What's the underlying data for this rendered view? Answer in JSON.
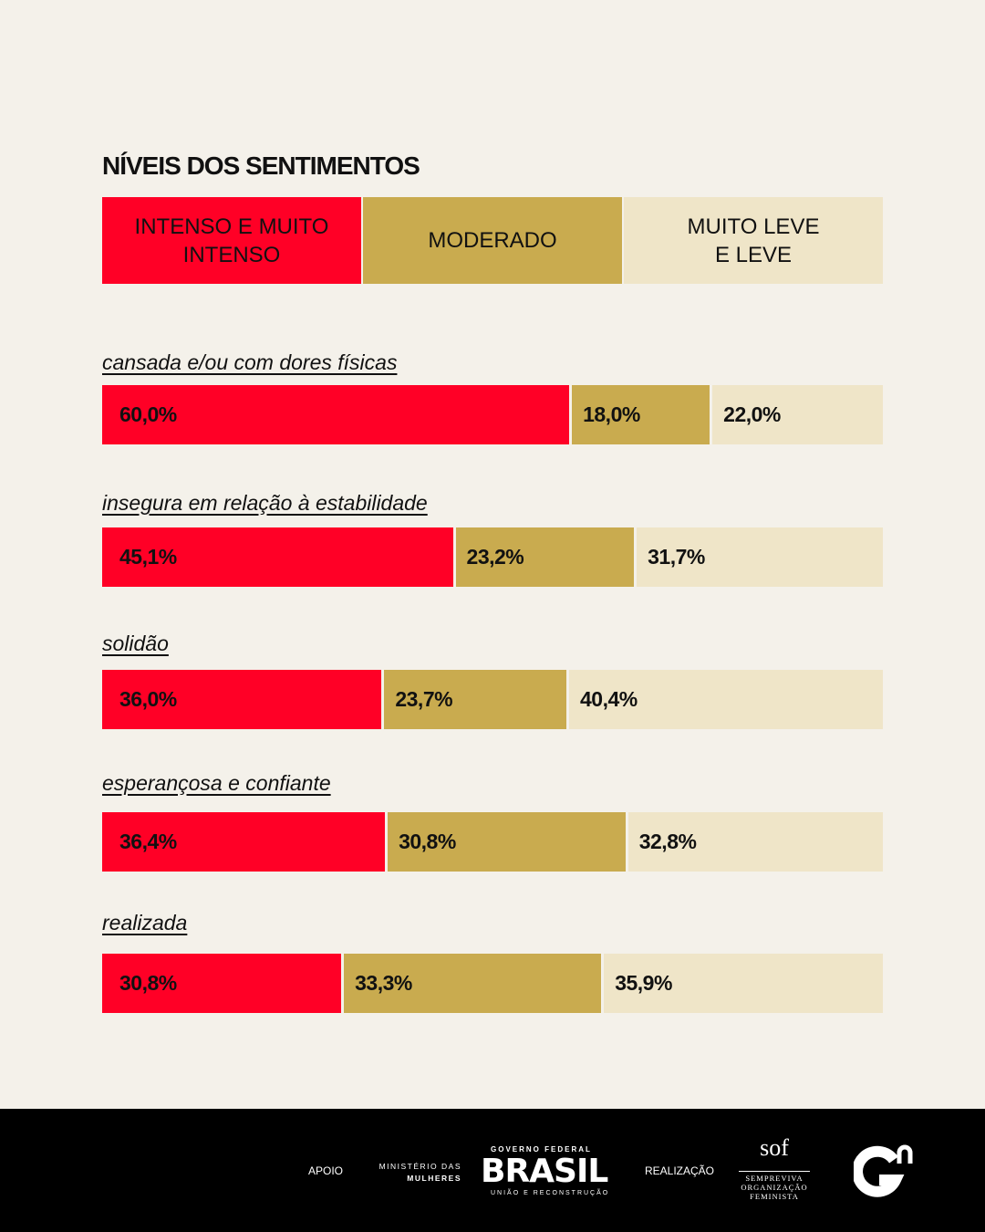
{
  "chart_data": {
    "type": "bar",
    "orientation": "horizontal-stacked-100",
    "title": "NÍVEIS DOS SENTIMENTOS",
    "legend_position": "top",
    "series": [
      {
        "name": "INTENSO E MUITO\nINTENSO",
        "color": "#ff0026"
      },
      {
        "name": "MODERADO",
        "color": "#c9ab4f"
      },
      {
        "name": "MUITO LEVE\nE LEVE",
        "color": "#efe5c8"
      }
    ],
    "categories": [
      "cansada e/ou com dores físicas",
      "insegura em relação à estabilidade",
      "solidão",
      "esperançosa e confiante",
      "realizada"
    ],
    "values": [
      [
        60.0,
        18.0,
        22.0
      ],
      [
        45.1,
        23.2,
        31.7
      ],
      [
        36.0,
        23.7,
        40.4
      ],
      [
        36.4,
        30.8,
        32.8
      ],
      [
        30.8,
        33.3,
        35.9
      ]
    ],
    "labels": [
      [
        "60,0%",
        "18,0%",
        "22,0%"
      ],
      [
        "45,1%",
        "23,2%",
        "31,7%"
      ],
      [
        "36,0%",
        "23,7%",
        "40,4%"
      ],
      [
        "36,4%",
        "30,8%",
        "32,8%"
      ],
      [
        "30,8%",
        "33,3%",
        "35,9%"
      ]
    ]
  },
  "footer": {
    "apoio": "APOIO",
    "ministerio_line1": "MINISTÉRIO DAS",
    "ministerio_line2": "MULHERES",
    "gov_top": "GOVERNO FEDERAL",
    "gov_brasil": "BRASIL",
    "gov_bottom": "UNIÃO E RECONSTRUÇÃO",
    "realizacao": "REALIZAÇÃO",
    "sof": "sof",
    "sof_l1": "SEMPREVIVA",
    "sof_l2": "ORGANIZAÇÃO",
    "sof_l3": "FEMINISTA",
    "gn_logo": "Gn"
  }
}
